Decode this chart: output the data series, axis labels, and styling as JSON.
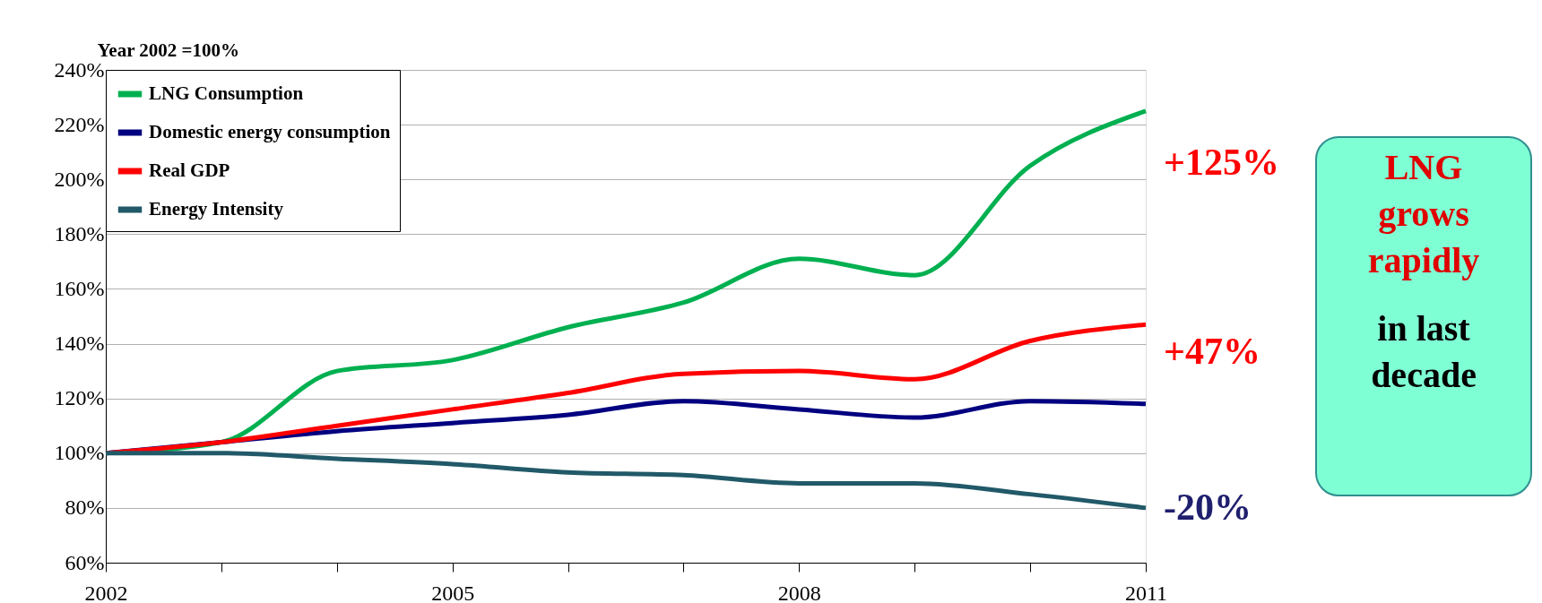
{
  "chart_data": {
    "type": "line",
    "ylabel": "Year 2002 =100%",
    "x": [
      2002,
      2003,
      2004,
      2005,
      2006,
      2007,
      2008,
      2009,
      2010,
      2011
    ],
    "series": [
      {
        "name": "LNG Consumption",
        "color": "#00b050",
        "values": [
          100,
          104,
          130,
          134,
          146,
          155,
          171,
          165,
          205,
          225
        ]
      },
      {
        "name": "Domestic energy consumption",
        "color": "#000080",
        "values": [
          100,
          104,
          108,
          111,
          114,
          119,
          116,
          113,
          119,
          118
        ]
      },
      {
        "name": "Real GDP",
        "color": "#ff0000",
        "values": [
          100,
          104,
          110,
          116,
          122,
          129,
          130,
          127,
          141,
          147
        ]
      },
      {
        "name": "Energy Intensity",
        "color": "#215968",
        "values": [
          100,
          100,
          98,
          96,
          93,
          92,
          89,
          89,
          85,
          80
        ]
      }
    ],
    "xlim": [
      2002,
      2011
    ],
    "xticks": [
      2002,
      {
        "value": 2003,
        "label": null
      },
      {
        "value": 2004,
        "label": null
      },
      2005,
      {
        "value": 2006,
        "label": null
      },
      {
        "value": 2007,
        "label": null
      },
      2008,
      {
        "value": 2009,
        "label": null
      },
      {
        "value": 2010,
        "label": null
      },
      2011
    ],
    "ylim": [
      60,
      240
    ],
    "yticks": [
      {
        "value": 60,
        "label": "60%"
      },
      {
        "value": 80,
        "label": "80%"
      },
      {
        "value": 100,
        "label": "100%"
      },
      {
        "value": 120,
        "label": "120%"
      },
      {
        "value": 140,
        "label": "140%"
      },
      {
        "value": 160,
        "label": "160%"
      },
      {
        "value": 180,
        "label": "180%"
      },
      {
        "value": 200,
        "label": "200%"
      },
      {
        "value": 220,
        "label": "220%"
      },
      {
        "value": 240,
        "label": "240%"
      }
    ],
    "grid": "y",
    "legend": "top left",
    "line_style": "solid",
    "annotations": [
      "+125%",
      "+47%",
      "-20%",
      "LNG grows rapidly",
      "in last decade"
    ]
  }
}
